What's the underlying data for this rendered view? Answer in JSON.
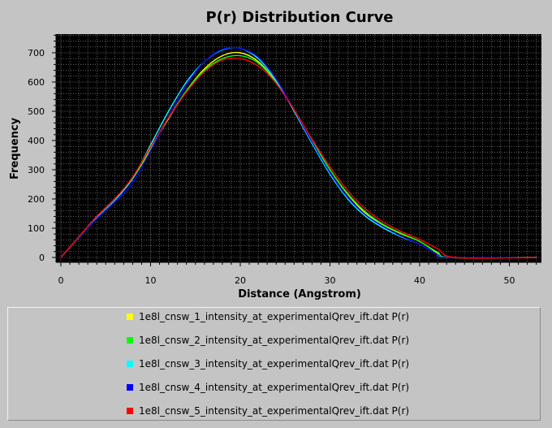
{
  "chart_data": {
    "type": "line",
    "title": "P(r) Distribution Curve",
    "xlabel": "Distance (Angstrom)",
    "ylabel": "Frequency",
    "xlim": [
      0,
      53
    ],
    "ylim": [
      0,
      760
    ],
    "xticks": [
      0,
      10,
      20,
      30,
      40,
      50
    ],
    "yticks": [
      0,
      100,
      200,
      300,
      400,
      500,
      600,
      700
    ],
    "grid": true,
    "legend_position": "bottom",
    "background_color": "#000000",
    "series": [
      {
        "name": "1e8l_cnsw_1_intensity_at_experimentalQrev_ift.dat P(r)",
        "color": "#ffff00",
        "x": [
          0,
          2,
          4,
          6,
          8,
          10,
          12,
          14,
          16,
          18,
          20,
          22,
          24,
          26,
          28,
          30,
          32,
          34,
          36,
          38,
          40,
          42,
          43,
          53
        ],
        "y": [
          0,
          70,
          140,
          200,
          270,
          370,
          475,
          570,
          645,
          690,
          700,
          670,
          600,
          505,
          400,
          300,
          215,
          150,
          110,
          80,
          55,
          15,
          0,
          0
        ]
      },
      {
        "name": "1e8l_cnsw_2_intensity_at_experimentalQrev_ift.dat P(r)",
        "color": "#00ff00",
        "x": [
          0,
          2,
          4,
          6,
          8,
          10,
          12,
          14,
          16,
          18,
          20,
          22,
          24,
          26,
          28,
          30,
          32,
          34,
          36,
          38,
          40,
          42,
          43.5,
          53
        ],
        "y": [
          0,
          70,
          140,
          200,
          270,
          375,
          478,
          570,
          640,
          680,
          690,
          665,
          598,
          505,
          400,
          300,
          218,
          155,
          112,
          82,
          55,
          18,
          0,
          0
        ]
      },
      {
        "name": "1e8l_cnsw_3_intensity_at_experimentalQrev_ift.dat P(r)",
        "color": "#00ffff",
        "x": [
          0,
          2,
          4,
          6,
          8,
          10,
          12,
          14,
          16,
          18,
          20,
          22,
          24,
          26,
          28,
          30,
          32,
          34,
          36,
          38,
          40,
          42,
          43,
          53
        ],
        "y": [
          0,
          68,
          135,
          195,
          270,
          385,
          500,
          600,
          670,
          710,
          715,
          680,
          605,
          500,
          390,
          285,
          200,
          140,
          100,
          70,
          45,
          10,
          0,
          0
        ]
      },
      {
        "name": "1e8l_cnsw_4_intensity_at_experimentalQrev_ift.dat P(r)",
        "color": "#0000ff",
        "x": [
          0,
          2,
          4,
          6,
          8,
          10,
          12,
          14,
          16,
          18,
          20,
          22,
          24,
          26,
          28,
          30,
          32,
          34,
          36,
          38,
          40,
          42,
          43,
          53
        ],
        "y": [
          0,
          68,
          132,
          190,
          255,
          365,
          480,
          590,
          670,
          712,
          715,
          685,
          610,
          505,
          395,
          290,
          205,
          145,
          105,
          72,
          45,
          10,
          0,
          0
        ]
      },
      {
        "name": "1e8l_cnsw_5_intensity_at_experimentalQrev_ift.dat P(r)",
        "color": "#ff0000",
        "x": [
          0,
          2,
          4,
          6,
          8,
          10,
          12,
          14,
          16,
          18,
          20,
          22,
          24,
          26,
          28,
          30,
          32,
          34,
          36,
          38,
          40,
          42,
          44,
          53
        ],
        "y": [
          0,
          70,
          140,
          200,
          275,
          378,
          478,
          565,
          635,
          675,
          680,
          655,
          595,
          505,
          405,
          310,
          228,
          165,
          120,
          88,
          62,
          30,
          0,
          0
        ]
      }
    ]
  }
}
